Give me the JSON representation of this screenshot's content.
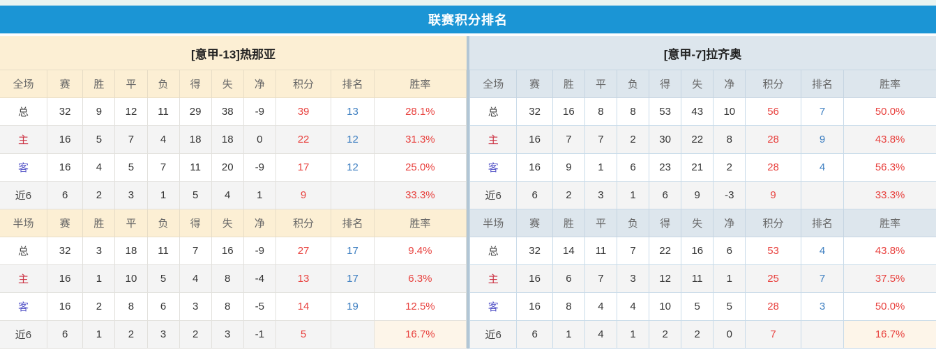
{
  "title": "联赛积分排名",
  "colors": {
    "title_bar_bg": "#1b95d5",
    "top_strip_bg": "#e9f4f1",
    "left_header_bg": "#fcefd4",
    "right_header_bg": "#dde6ed",
    "points_red": "#e8403d",
    "rank_blue": "#3e7fc1",
    "home_label_red": "#cc3344",
    "away_label_blue": "#5656c8"
  },
  "columns_full": [
    "全场",
    "赛",
    "胜",
    "平",
    "负",
    "得",
    "失",
    "净",
    "积分",
    "排名",
    "胜率"
  ],
  "columns_half": [
    "半场",
    "赛",
    "胜",
    "平",
    "负",
    "得",
    "失",
    "净",
    "积分",
    "排名",
    "胜率"
  ],
  "teams": [
    {
      "name": "[意甲-13]热那亚",
      "full": [
        [
          "总",
          "32",
          "9",
          "12",
          "11",
          "29",
          "38",
          "-9",
          "39",
          "13",
          "28.1%"
        ],
        [
          "主",
          "16",
          "5",
          "7",
          "4",
          "18",
          "18",
          "0",
          "22",
          "12",
          "31.3%"
        ],
        [
          "客",
          "16",
          "4",
          "5",
          "7",
          "11",
          "20",
          "-9",
          "17",
          "12",
          "25.0%"
        ],
        [
          "近6",
          "6",
          "2",
          "3",
          "1",
          "5",
          "4",
          "1",
          "9",
          "",
          "33.3%"
        ]
      ],
      "half": [
        [
          "总",
          "32",
          "3",
          "18",
          "11",
          "7",
          "16",
          "-9",
          "27",
          "17",
          "9.4%"
        ],
        [
          "主",
          "16",
          "1",
          "10",
          "5",
          "4",
          "8",
          "-4",
          "13",
          "17",
          "6.3%"
        ],
        [
          "客",
          "16",
          "2",
          "8",
          "6",
          "3",
          "8",
          "-5",
          "14",
          "19",
          "12.5%"
        ],
        [
          "近6",
          "6",
          "1",
          "2",
          "3",
          "2",
          "3",
          "-1",
          "5",
          "",
          "16.7%"
        ]
      ]
    },
    {
      "name": "[意甲-7]拉齐奥",
      "full": [
        [
          "总",
          "32",
          "16",
          "8",
          "8",
          "53",
          "43",
          "10",
          "56",
          "7",
          "50.0%"
        ],
        [
          "主",
          "16",
          "7",
          "7",
          "2",
          "30",
          "22",
          "8",
          "28",
          "9",
          "43.8%"
        ],
        [
          "客",
          "16",
          "9",
          "1",
          "6",
          "23",
          "21",
          "2",
          "28",
          "4",
          "56.3%"
        ],
        [
          "近6",
          "6",
          "2",
          "3",
          "1",
          "6",
          "9",
          "-3",
          "9",
          "",
          "33.3%"
        ]
      ],
      "half": [
        [
          "总",
          "32",
          "14",
          "11",
          "7",
          "22",
          "16",
          "6",
          "53",
          "4",
          "43.8%"
        ],
        [
          "主",
          "16",
          "6",
          "7",
          "3",
          "12",
          "11",
          "1",
          "25",
          "7",
          "37.5%"
        ],
        [
          "客",
          "16",
          "8",
          "4",
          "4",
          "10",
          "5",
          "5",
          "28",
          "3",
          "50.0%"
        ],
        [
          "近6",
          "6",
          "1",
          "4",
          "1",
          "2",
          "2",
          "0",
          "7",
          "",
          "16.7%"
        ]
      ]
    }
  ]
}
